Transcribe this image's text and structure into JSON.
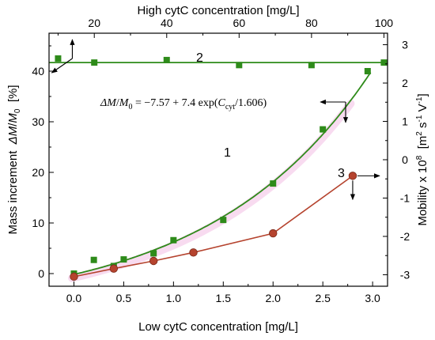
{
  "chart_data": {
    "type": "scatter",
    "x_axis_bottom": {
      "label": "Low cytC concentration [mg/L]",
      "range": [
        -0.25,
        3.15
      ],
      "ticks": [
        0.0,
        0.5,
        1.0,
        1.5,
        2.0,
        2.5,
        3.0
      ],
      "tick_labels": [
        "0.0",
        "0.5",
        "1.0",
        "1.5",
        "2.0",
        "2.5",
        "3.0"
      ]
    },
    "x_axis_top": {
      "label": "High cytC concentration [mg/L]",
      "range": [
        7.5,
        101
      ],
      "ticks": [
        20,
        40,
        60,
        80,
        100
      ],
      "tick_labels": [
        "20",
        "40",
        "60",
        "80",
        "100"
      ]
    },
    "y_axis_left": {
      "label_parts": [
        "Mass increment  ",
        "ΔM",
        "/",
        "M",
        "0",
        "  [%]"
      ],
      "range": [
        -2.5,
        47.5
      ],
      "ticks": [
        0,
        10,
        20,
        30,
        40
      ],
      "tick_labels": [
        "0",
        "10",
        "20",
        "30",
        "40"
      ]
    },
    "y_axis_right": {
      "label_parts": [
        "Mobility x 10",
        "8",
        "  [m",
        "2",
        " s",
        "-1",
        " V",
        "-1",
        "]"
      ],
      "range": [
        -3.3,
        3.3
      ],
      "ticks": [
        -3,
        -2,
        -1,
        0,
        1,
        2,
        3
      ],
      "tick_labels": [
        "-3",
        "-2",
        "-1",
        "0",
        "1",
        "2",
        "3"
      ]
    },
    "series": [
      {
        "name": "1",
        "axes": "low-left",
        "color": "#2e8b1a",
        "marker": "square",
        "points": [
          [
            0.0,
            0.0
          ],
          [
            0.2,
            2.7
          ],
          [
            0.4,
            1.5
          ],
          [
            0.5,
            2.8
          ],
          [
            0.8,
            4.0
          ],
          [
            1.0,
            6.6
          ],
          [
            1.5,
            10.6
          ],
          [
            2.0,
            17.8
          ],
          [
            2.5,
            28.5
          ],
          [
            2.95,
            40.0
          ]
        ],
        "fit": {
          "a": -7.57,
          "b": 7.4,
          "c": 1.606
        }
      },
      {
        "name": "2",
        "axes": "high-left",
        "color": "#2e8b1a",
        "marker": "square",
        "points": [
          [
            10,
            42.5
          ],
          [
            20,
            41.7
          ],
          [
            40,
            42.2
          ],
          [
            60,
            41.2
          ],
          [
            80,
            41.2
          ],
          [
            100,
            41.7
          ]
        ],
        "fit_constant": 41.7
      },
      {
        "name": "3",
        "axes": "low-right",
        "color": "#b5432e",
        "marker": "circle",
        "points": [
          [
            0.0,
            -3.05
          ],
          [
            0.4,
            -2.84
          ],
          [
            0.8,
            -2.64
          ],
          [
            1.2,
            -2.42
          ],
          [
            2.0,
            -1.92
          ],
          [
            2.8,
            -0.42
          ]
        ]
      }
    ],
    "annotation_equation": {
      "parts": [
        "ΔM",
        "/",
        "M",
        "0",
        " = −7.57 + 7.4 exp(",
        "C",
        "cyt",
        "/1.606)"
      ]
    },
    "grid": false
  }
}
